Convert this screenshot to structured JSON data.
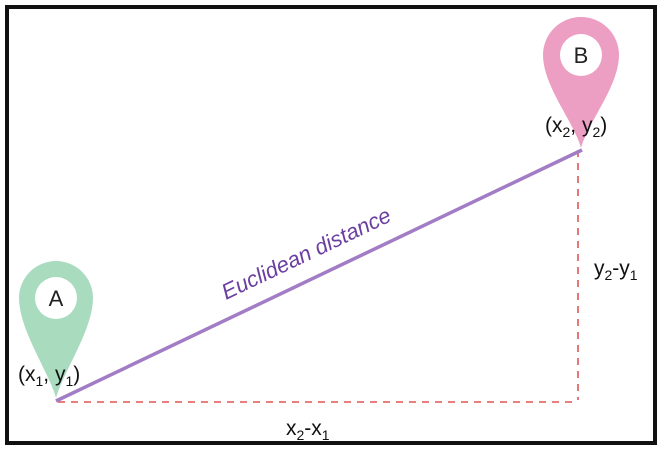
{
  "colors": {
    "frame": "#111111",
    "distance_line": "#a27cc4",
    "distance_text": "#6b3fa0",
    "dashed": "#e05555",
    "pin_a": "#a9dbbf",
    "pin_b": "#ec9ec3"
  },
  "point_a": {
    "label": "A",
    "icon": "map-pin-icon",
    "coord": {
      "open": "(x",
      "sub1": "1",
      "mid": ", y",
      "sub2": "1",
      "close": ")"
    }
  },
  "point_b": {
    "label": "B",
    "icon": "map-pin-icon",
    "coord": {
      "open": "(x",
      "sub1": "2",
      "mid": ", y",
      "sub2": "2",
      "close": ")"
    }
  },
  "distance_label": "Euclidean distance",
  "dx_label": {
    "a": "x",
    "a_sub": "2",
    "b": "-x",
    "b_sub": "1"
  },
  "dy_label": {
    "a": "y",
    "a_sub": "2",
    "b": "-y",
    "b_sub": "1"
  }
}
